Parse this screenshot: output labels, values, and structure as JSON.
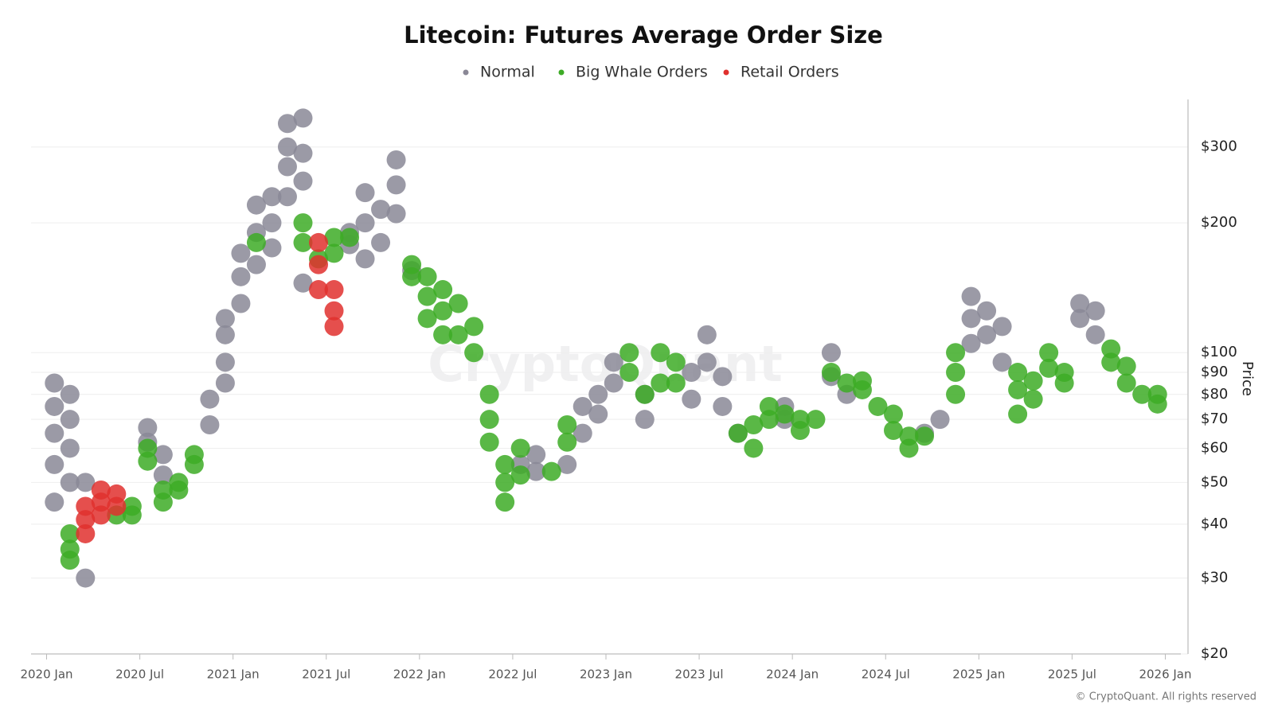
{
  "chart_data": {
    "type": "scatter",
    "title": "Litecoin: Futures Average Order Size",
    "y_label": "Price",
    "watermark": "CryptoQuant",
    "credit": "© CryptoQuant. All rights reserved",
    "log_y": true,
    "grid": true,
    "legend_position": "top",
    "xlim": [
      "2019-12",
      "2026-02"
    ],
    "xticks": [
      {
        "value": "2020-01",
        "label": "2020 Jan"
      },
      {
        "value": "2020-07",
        "label": "2020 Jul"
      },
      {
        "value": "2021-01",
        "label": "2021 Jan"
      },
      {
        "value": "2021-07",
        "label": "2021 Jul"
      },
      {
        "value": "2022-01",
        "label": "2022 Jan"
      },
      {
        "value": "2022-07",
        "label": "2022 Jul"
      },
      {
        "value": "2023-01",
        "label": "2023 Jan"
      },
      {
        "value": "2023-07",
        "label": "2023 Jul"
      },
      {
        "value": "2024-01",
        "label": "2024 Jan"
      },
      {
        "value": "2024-07",
        "label": "2024 Jul"
      },
      {
        "value": "2025-01",
        "label": "2025 Jan"
      },
      {
        "value": "2025-07",
        "label": "2025 Jul"
      },
      {
        "value": "2026-01",
        "label": "2026 Jan"
      }
    ],
    "ylim": [
      20,
      400
    ],
    "yticks": [
      {
        "value": 20,
        "label": "$20"
      },
      {
        "value": 30,
        "label": "$30"
      },
      {
        "value": 40,
        "label": "$40"
      },
      {
        "value": 50,
        "label": "$50"
      },
      {
        "value": 60,
        "label": "$60"
      },
      {
        "value": 70,
        "label": "$70"
      },
      {
        "value": 80,
        "label": "$80"
      },
      {
        "value": 90,
        "label": "$90"
      },
      {
        "value": 100,
        "label": "$100"
      },
      {
        "value": 200,
        "label": "$200"
      },
      {
        "value": 300,
        "label": "$300"
      }
    ],
    "series": [
      {
        "name": "Normal",
        "color": "#8a8896",
        "x": [
          "2020-01",
          "2020-01",
          "2020-01",
          "2020-01",
          "2020-01",
          "2020-02",
          "2020-02",
          "2020-02",
          "2020-02",
          "2020-03",
          "2020-03",
          "2020-07",
          "2020-07",
          "2020-08",
          "2020-08",
          "2020-11",
          "2020-11",
          "2020-12",
          "2020-12",
          "2020-12",
          "2020-12",
          "2021-01",
          "2021-01",
          "2021-01",
          "2021-02",
          "2021-02",
          "2021-02",
          "2021-03",
          "2021-03",
          "2021-03",
          "2021-04",
          "2021-04",
          "2021-04",
          "2021-04",
          "2021-05",
          "2021-05",
          "2021-05",
          "2021-05",
          "2021-08",
          "2021-08",
          "2021-09",
          "2021-09",
          "2021-09",
          "2021-10",
          "2021-10",
          "2021-11",
          "2021-11",
          "2021-11",
          "2021-12",
          "2022-07",
          "2022-08",
          "2022-08",
          "2022-10",
          "2022-11",
          "2022-11",
          "2022-12",
          "2022-12",
          "2023-01",
          "2023-01",
          "2023-03",
          "2023-03",
          "2023-06",
          "2023-06",
          "2023-07",
          "2023-07",
          "2023-08",
          "2023-08",
          "2023-09",
          "2023-12",
          "2023-12",
          "2024-03",
          "2024-03",
          "2024-04",
          "2024-09",
          "2024-10",
          "2024-12",
          "2024-12",
          "2024-12",
          "2025-01",
          "2025-01",
          "2025-02",
          "2025-02",
          "2025-07",
          "2025-07",
          "2025-08",
          "2025-08"
        ],
        "values": [
          45,
          55,
          65,
          75,
          85,
          50,
          60,
          70,
          80,
          30,
          50,
          62,
          67,
          52,
          58,
          68,
          78,
          85,
          95,
          110,
          120,
          130,
          150,
          170,
          160,
          190,
          220,
          175,
          200,
          230,
          230,
          270,
          300,
          340,
          250,
          290,
          350,
          145,
          178,
          190,
          165,
          200,
          235,
          180,
          215,
          210,
          245,
          280,
          155,
          55,
          53,
          58,
          55,
          65,
          75,
          72,
          80,
          85,
          95,
          70,
          80,
          78,
          90,
          95,
          110,
          75,
          88,
          65,
          70,
          75,
          88,
          100,
          80,
          65,
          70,
          105,
          120,
          135,
          110,
          125,
          95,
          115,
          120,
          130,
          110,
          125
        ]
      },
      {
        "name": "Big Whale Orders",
        "color": "#3dab26",
        "x": [
          "2020-02",
          "2020-02",
          "2020-02",
          "2020-05",
          "2020-06",
          "2020-06",
          "2020-07",
          "2020-07",
          "2020-08",
          "2020-08",
          "2020-09",
          "2020-09",
          "2020-10",
          "2020-10",
          "2021-02",
          "2021-05",
          "2021-05",
          "2021-06",
          "2021-07",
          "2021-07",
          "2021-08",
          "2021-12",
          "2021-12",
          "2022-01",
          "2022-01",
          "2022-01",
          "2022-02",
          "2022-02",
          "2022-02",
          "2022-03",
          "2022-03",
          "2022-04",
          "2022-04",
          "2022-05",
          "2022-05",
          "2022-05",
          "2022-06",
          "2022-06",
          "2022-06",
          "2022-07",
          "2022-07",
          "2022-09",
          "2022-10",
          "2022-10",
          "2023-02",
          "2023-02",
          "2023-03",
          "2023-04",
          "2023-04",
          "2023-05",
          "2023-05",
          "2023-09",
          "2023-10",
          "2023-10",
          "2023-11",
          "2023-11",
          "2023-12",
          "2024-01",
          "2024-01",
          "2024-02",
          "2024-03",
          "2024-04",
          "2024-05",
          "2024-05",
          "2024-06",
          "2024-07",
          "2024-07",
          "2024-08",
          "2024-08",
          "2024-09",
          "2024-11",
          "2024-11",
          "2024-11",
          "2025-03",
          "2025-03",
          "2025-03",
          "2025-04",
          "2025-04",
          "2025-05",
          "2025-05",
          "2025-06",
          "2025-06",
          "2025-09",
          "2025-09",
          "2025-10",
          "2025-10",
          "2025-11",
          "2025-12",
          "2025-12"
        ],
        "values": [
          33,
          35,
          38,
          42,
          42,
          44,
          56,
          60,
          45,
          48,
          48,
          50,
          55,
          58,
          180,
          180,
          200,
          165,
          170,
          185,
          185,
          150,
          160,
          120,
          135,
          150,
          110,
          125,
          140,
          110,
          130,
          100,
          115,
          62,
          70,
          80,
          45,
          50,
          55,
          52,
          60,
          53,
          62,
          68,
          90,
          100,
          80,
          85,
          100,
          85,
          95,
          65,
          60,
          68,
          70,
          75,
          72,
          66,
          70,
          70,
          90,
          85,
          82,
          86,
          75,
          66,
          72,
          60,
          64,
          64,
          80,
          90,
          100,
          72,
          82,
          90,
          78,
          86,
          92,
          100,
          85,
          90,
          95,
          102,
          85,
          93,
          80,
          76,
          80
        ]
      },
      {
        "name": "Retail Orders",
        "color": "#e0302e",
        "x": [
          "2020-03",
          "2020-03",
          "2020-03",
          "2020-04",
          "2020-04",
          "2020-04",
          "2020-05",
          "2020-05",
          "2021-06",
          "2021-06",
          "2021-06",
          "2021-07",
          "2021-07",
          "2021-07"
        ],
        "values": [
          38,
          41,
          44,
          42,
          45,
          48,
          44,
          47,
          140,
          160,
          180,
          115,
          125,
          140
        ]
      }
    ]
  }
}
